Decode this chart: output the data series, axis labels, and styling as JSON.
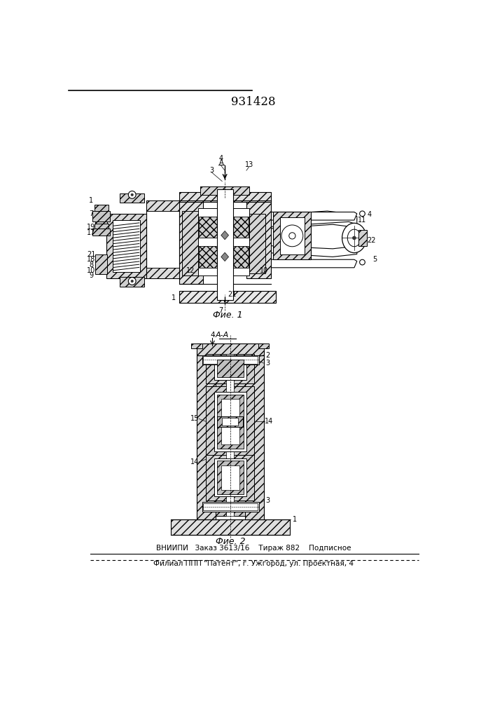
{
  "title": "931428",
  "fig1_caption": "Фие. 1",
  "fig2_caption": "Фие. 2",
  "footer_line1": "ВНИИПИ   Заказ 3613/16    Тираж 882    Подписное",
  "footer_line2": "Филиал ППП \"Патент\", г. Ужгород, ул. Проектная, 4",
  "bg_color": "#f5f5f0"
}
